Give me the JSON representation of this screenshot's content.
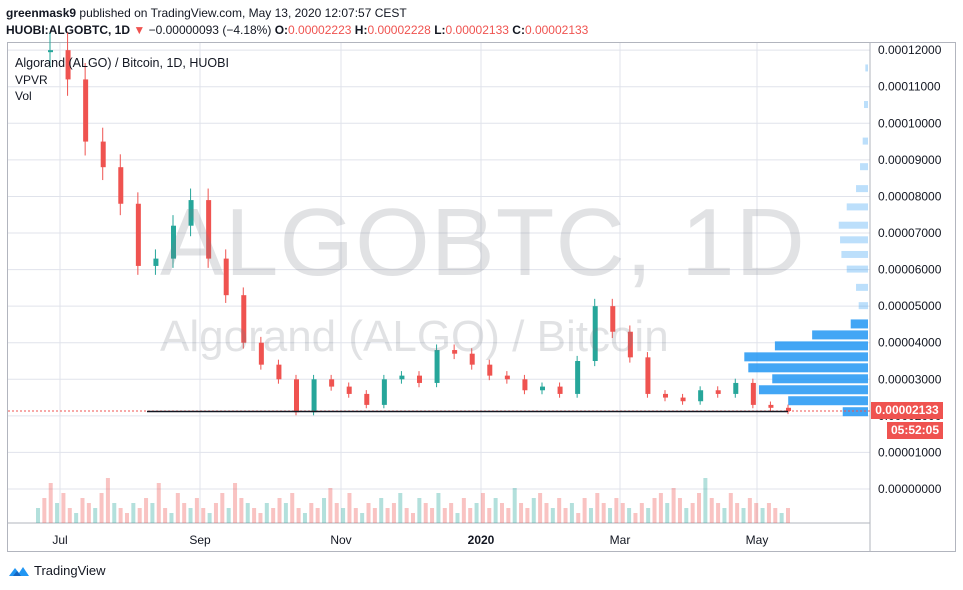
{
  "header": {
    "user": "greenmask9",
    "published_text": "published on TradingView.com, May 13, 2020 12:07:57 CEST",
    "symbol": "HUOBI:ALGOBTC, 1D",
    "change": "−0.00000093 (−4.18%)",
    "o_label": "O:",
    "o_value": "0.00002223",
    "h_label": "H:",
    "h_value": "0.00002228",
    "l_label": "L:",
    "l_value": "0.00002133",
    "c_label": "C:",
    "c_value": "0.00002133"
  },
  "legend": {
    "title": "Algorand (ALGO) / Bitcoin, 1D, HUOBI",
    "vpvr": "VPVR",
    "vol": "Vol"
  },
  "watermark": {
    "line1": "ALGOBTC, 1D",
    "line2": "Algorand (ALGO) / Bitcoin"
  },
  "price_tag": "0.00002133",
  "countdown_tag": "05:52:05",
  "brand": "TradingView",
  "colors": {
    "up": "#26a69a",
    "down": "#ef5350",
    "vpvr": "#2196f3",
    "grid": "#e0e3eb"
  },
  "chart_data": {
    "type": "candlestick",
    "title": "Algorand (ALGO) / Bitcoin, 1D, HUOBI",
    "y_ticks": [
      "0.00012000",
      "0.00011000",
      "0.00010000",
      "0.00009000",
      "0.00008000",
      "0.00007000",
      "0.00006000",
      "0.00005000",
      "0.00004000",
      "0.00003000",
      "0.00002000",
      "0.00001000",
      "0.00000000"
    ],
    "x_ticks": [
      "Jul",
      "Sep",
      "Nov",
      "2020",
      "Mar",
      "May"
    ],
    "ylim": [
      4.9e-06,
      0.000121
    ],
    "last_close": 2.133e-05,
    "price_points": [
      {
        "date": "Jun",
        "close": 0.00012
      },
      {
        "date": "Jul",
        "close": 0.000112
      },
      {
        "date": "Jul",
        "close": 9.5e-05
      },
      {
        "date": "Jul",
        "close": 8.8e-05
      },
      {
        "date": "Jul",
        "close": 7.8e-05
      },
      {
        "date": "Aug",
        "close": 6.1e-05
      },
      {
        "date": "Aug",
        "close": 6.3e-05
      },
      {
        "date": "Aug",
        "close": 7.2e-05
      },
      {
        "date": "Aug",
        "close": 7.9e-05
      },
      {
        "date": "Aug",
        "close": 6.3e-05
      },
      {
        "date": "Sep",
        "close": 5.3e-05
      },
      {
        "date": "Sep",
        "close": 4e-05
      },
      {
        "date": "Sep",
        "close": 3.4e-05
      },
      {
        "date": "Sep",
        "close": 3e-05
      },
      {
        "date": "Oct",
        "close": 2.1e-05
      },
      {
        "date": "Oct",
        "close": 3e-05
      },
      {
        "date": "Oct",
        "close": 2.8e-05
      },
      {
        "date": "Oct",
        "close": 2.6e-05
      },
      {
        "date": "Nov",
        "close": 2.3e-05
      },
      {
        "date": "Nov",
        "close": 3e-05
      },
      {
        "date": "Nov",
        "close": 3.1e-05
      },
      {
        "date": "Dec",
        "close": 2.9e-05
      },
      {
        "date": "Dec",
        "close": 3.8e-05
      },
      {
        "date": "Dec",
        "close": 3.7e-05
      },
      {
        "date": "Dec",
        "close": 3.4e-05
      },
      {
        "date": "Jan",
        "close": 3.1e-05
      },
      {
        "date": "Jan",
        "close": 3e-05
      },
      {
        "date": "Jan",
        "close": 2.7e-05
      },
      {
        "date": "Feb",
        "close": 2.8e-05
      },
      {
        "date": "Feb",
        "close": 2.6e-05
      },
      {
        "date": "Feb",
        "close": 3.5e-05
      },
      {
        "date": "Feb",
        "close": 5e-05
      },
      {
        "date": "Mar",
        "close": 4.3e-05
      },
      {
        "date": "Mar",
        "close": 3.6e-05
      },
      {
        "date": "Mar",
        "close": 2.6e-05
      },
      {
        "date": "Mar",
        "close": 2.5e-05
      },
      {
        "date": "Apr",
        "close": 2.4e-05
      },
      {
        "date": "Apr",
        "close": 2.7e-05
      },
      {
        "date": "Apr",
        "close": 2.6e-05
      },
      {
        "date": "Apr",
        "close": 2.9e-05
      },
      {
        "date": "May",
        "close": 2.3e-05
      },
      {
        "date": "May",
        "close": 2.22e-05
      },
      {
        "date": "May 13",
        "close": 2.133e-05
      }
    ],
    "volume": [
      3,
      5,
      8,
      4,
      6,
      3,
      2,
      5,
      4,
      3,
      6,
      9,
      4,
      3,
      2,
      4,
      3,
      5,
      4,
      8,
      3,
      2,
      6,
      4,
      3,
      5,
      3,
      2,
      4,
      6,
      3,
      8,
      5,
      4,
      3,
      2,
      4,
      3,
      5,
      4,
      6,
      3,
      2,
      4,
      3,
      5,
      7,
      4,
      3,
      6,
      3,
      2,
      4,
      3,
      5,
      3,
      4,
      6,
      3,
      2,
      5,
      4,
      3,
      6,
      3,
      4,
      2,
      5,
      3,
      4,
      6,
      3,
      5,
      4,
      3,
      7,
      4,
      3,
      5,
      6,
      4,
      3,
      5,
      3,
      4,
      2,
      5,
      3,
      6,
      4,
      3,
      5,
      4,
      3,
      2,
      4,
      3,
      5,
      6,
      4,
      7,
      5,
      3,
      4,
      6,
      9,
      5,
      4,
      3,
      6,
      4,
      3,
      5,
      4,
      3,
      4,
      3,
      2,
      3
    ],
    "vpvr_levels": [
      {
        "price": 2.1e-05,
        "volume": 19
      },
      {
        "price": 2.4e-05,
        "volume": 60
      },
      {
        "price": 2.7e-05,
        "volume": 82
      },
      {
        "price": 3e-05,
        "volume": 72
      },
      {
        "price": 3.3e-05,
        "volume": 90
      },
      {
        "price": 3.6e-05,
        "volume": 93
      },
      {
        "price": 3.9e-05,
        "volume": 70
      },
      {
        "price": 4.2e-05,
        "volume": 42
      },
      {
        "price": 4.5e-05,
        "volume": 13
      },
      {
        "price": 5e-05,
        "volume": 7
      },
      {
        "price": 5.5e-05,
        "volume": 9
      },
      {
        "price": 6e-05,
        "volume": 16
      },
      {
        "price": 6.4e-05,
        "volume": 20
      },
      {
        "price": 6.8e-05,
        "volume": 21
      },
      {
        "price": 7.2e-05,
        "volume": 22
      },
      {
        "price": 7.7e-05,
        "volume": 16
      },
      {
        "price": 8.2e-05,
        "volume": 9
      },
      {
        "price": 8.8e-05,
        "volume": 6
      },
      {
        "price": 9.5e-05,
        "volume": 4
      },
      {
        "price": 0.000105,
        "volume": 3
      },
      {
        "price": 0.000115,
        "volume": 2
      }
    ]
  }
}
